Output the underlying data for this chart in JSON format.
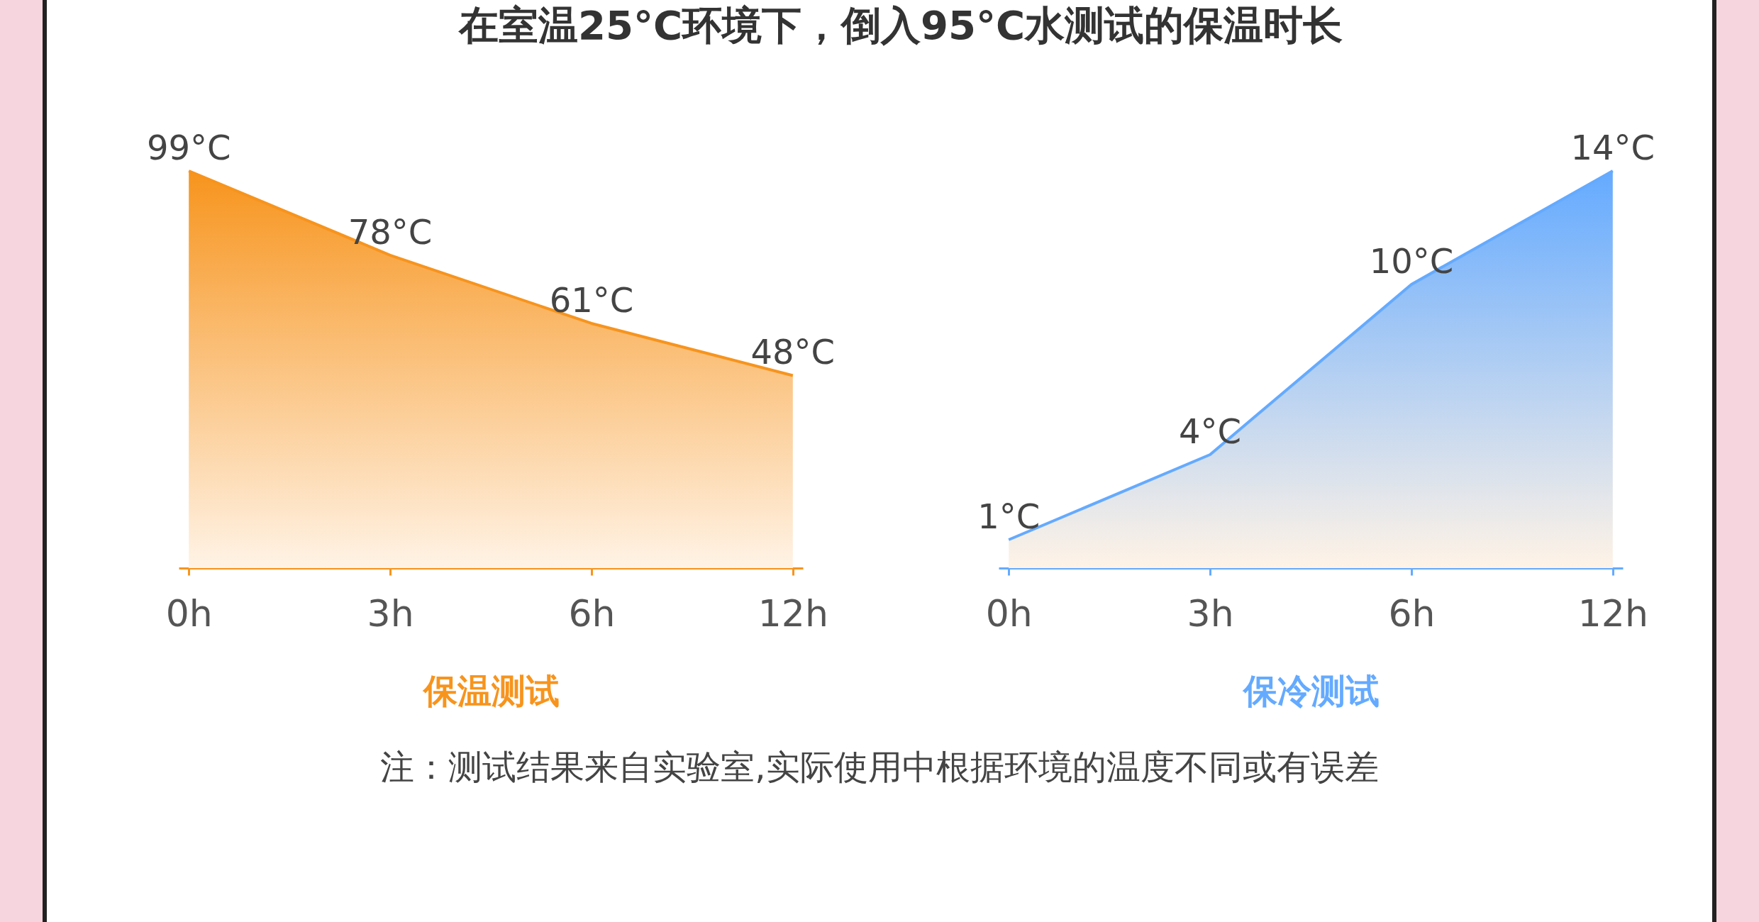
{
  "chart_data": [
    {
      "type": "area",
      "title": "在室温25°C环境下，倒入95°C水测试的保温时长",
      "xlabel": "保温测试",
      "categories": [
        "0h",
        "3h",
        "6h",
        "12h"
      ],
      "series": [
        {
          "color": "#f7941d",
          "values": [
            99,
            78,
            61,
            48
          ],
          "value_labels": [
            "99°C",
            "78°C",
            "61°C",
            "48°C"
          ]
        }
      ],
      "tick_labels": "x"
    },
    {
      "type": "area",
      "xlabel": "保冷测试",
      "categories": [
        "0h",
        "3h",
        "6h",
        "12h"
      ],
      "series": [
        {
          "color": "#64aaff",
          "values": [
            1,
            4,
            10,
            14
          ],
          "value_labels": [
            "1°C",
            "4°C",
            "10°C",
            "14°C"
          ]
        }
      ],
      "tick_labels": "x",
      "annotations": [
        "注：测试结果来自实验室,实际使用中根据环境的温度不同或有误差"
      ]
    }
  ]
}
